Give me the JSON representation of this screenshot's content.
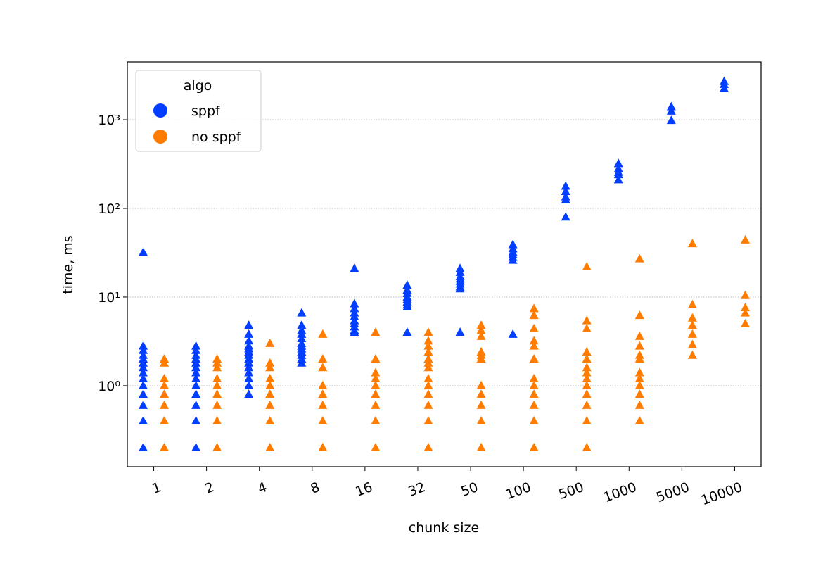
{
  "chart_data": {
    "type": "strip",
    "x_label": "chunk size",
    "y_label": "time, ms",
    "y_log": true,
    "grid": true,
    "legend_title": "algo",
    "legend_corner": "upper left",
    "categories": [
      "1",
      "2",
      "4",
      "8",
      "16",
      "32",
      "50",
      "100",
      "500",
      "1000",
      "5000",
      "10000"
    ],
    "ylim": [
      0.122,
      4480
    ],
    "yticks": [
      {
        "value": 1,
        "label": "10⁰"
      },
      {
        "value": 10,
        "label": "10¹"
      },
      {
        "value": 100,
        "label": "10²"
      },
      {
        "value": 1000,
        "label": "10³"
      }
    ],
    "series": [
      {
        "name": "sppf",
        "color": "#023eff",
        "values": [
          [
            32,
            2.8,
            2.5,
            2.2,
            2.0,
            1.8,
            1.6,
            1.4,
            1.2,
            1.0,
            0.8,
            0.6,
            0.4,
            0.2
          ],
          [
            2.8,
            2.5,
            2.2,
            2.0,
            1.8,
            1.6,
            1.4,
            1.2,
            1.0,
            0.8,
            0.6,
            0.4,
            0.2
          ],
          [
            4.8,
            3.8,
            3.2,
            2.8,
            2.6,
            2.4,
            2.2,
            2.0,
            1.8,
            1.6,
            1.4,
            1.2,
            1.0,
            0.8
          ],
          [
            6.6,
            4.8,
            4.2,
            3.8,
            3.4,
            3.0,
            2.8,
            2.6,
            2.4,
            2.2,
            2.0,
            1.8
          ],
          [
            21,
            8.4,
            7.4,
            6.6,
            6.0,
            5.4,
            5.0,
            4.6,
            4.2,
            4.0
          ],
          [
            13.6,
            12,
            11,
            10,
            9.4,
            8.8,
            8.2,
            7.8,
            4.0
          ],
          [
            21,
            19,
            17,
            16,
            15,
            14,
            13,
            12.4,
            4.0
          ],
          [
            39,
            35,
            32,
            30,
            28,
            26,
            3.8
          ],
          [
            178,
            155,
            135,
            125,
            80
          ],
          [
            320,
            280,
            255,
            240,
            210
          ],
          [
            1400,
            1250,
            980
          ],
          [
            2700,
            2500,
            2250
          ]
        ]
      },
      {
        "name": "no sppf",
        "color": "#ff7c00",
        "values": [
          [
            2.0,
            1.8,
            1.2,
            1.0,
            0.8,
            0.6,
            0.4,
            0.2
          ],
          [
            2.0,
            1.8,
            1.6,
            1.2,
            1.0,
            0.8,
            0.6,
            0.4,
            0.2
          ],
          [
            3.0,
            1.8,
            1.6,
            1.2,
            1.0,
            0.8,
            0.6,
            0.4,
            0.2
          ],
          [
            3.8,
            2.0,
            1.6,
            1.0,
            0.8,
            0.6,
            0.4,
            0.2
          ],
          [
            4.0,
            2.0,
            1.4,
            1.2,
            1.0,
            0.8,
            0.6,
            0.4,
            0.2
          ],
          [
            4.0,
            3.2,
            2.8,
            2.4,
            2.0,
            1.8,
            1.6,
            1.2,
            1.0,
            0.8,
            0.6,
            0.4,
            0.2
          ],
          [
            4.8,
            4.2,
            3.6,
            2.4,
            2.2,
            2.0,
            1.0,
            0.8,
            0.6,
            0.4,
            0.2
          ],
          [
            7.4,
            6.2,
            4.4,
            3.2,
            2.8,
            2.0,
            1.2,
            1.0,
            0.8,
            0.6,
            0.4,
            0.2
          ],
          [
            22,
            5.4,
            4.4,
            2.4,
            2.0,
            1.6,
            1.4,
            1.2,
            1.0,
            0.8,
            0.6,
            0.4,
            0.2
          ],
          [
            27,
            6.2,
            3.6,
            2.8,
            2.2,
            2.0,
            1.4,
            1.2,
            1.0,
            0.8,
            0.6,
            0.4
          ],
          [
            40,
            8.2,
            5.8,
            4.8,
            3.8,
            2.9,
            2.2
          ],
          [
            44,
            10.4,
            7.6,
            6.6,
            5.0
          ]
        ]
      }
    ]
  }
}
